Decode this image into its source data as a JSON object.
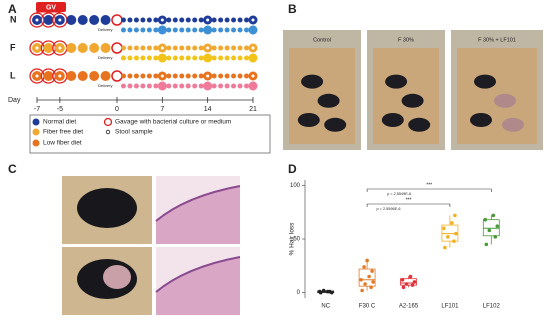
{
  "panel_labels": [
    "A",
    "B",
    "C",
    "D"
  ],
  "panel_a": {
    "gavage_label": "GV",
    "rows": [
      {
        "label": "N",
        "color": "#1f3c99",
        "after_color": "#3d8fd6"
      },
      {
        "label": "F",
        "color": "#f0a830",
        "after_color": "#f2c318"
      },
      {
        "label": "L",
        "color": "#e8731e",
        "after_color": "#f07a9a"
      }
    ],
    "delivery_label": "Delivery",
    "axis_label": "Day",
    "day_ticks": [
      -7,
      -5,
      0,
      7,
      14,
      21
    ],
    "legend": [
      {
        "label": "Normal diet",
        "color": "#1f3c99"
      },
      {
        "label": "Fiber free diet",
        "color": "#f0a830"
      },
      {
        "label": "Low fiber diet",
        "color": "#e8731e"
      },
      {
        "label": "Gavage with bacterial culture or medium",
        "color": "#e02020"
      },
      {
        "label": "Stool sample",
        "color": "#222222"
      }
    ]
  },
  "panel_b": {
    "photo_labels": [
      "Control",
      "F 30%",
      "F 30% + LF101"
    ]
  },
  "chart_data": {
    "type": "box",
    "y_label": "% Hair loss",
    "categories": [
      "NC",
      "F30 C",
      "A2-165",
      "LF101",
      "LF102"
    ],
    "boxes": [
      {
        "color": "#222222",
        "min": 0,
        "q1": 0,
        "median": 1,
        "q3": 1.5,
        "max": 2,
        "points": [
          0,
          1,
          2,
          0,
          1,
          1
        ]
      },
      {
        "color": "#e07b2a",
        "min": 2,
        "q1": 6,
        "median": 12,
        "q3": 22,
        "max": 30,
        "points": [
          2,
          5,
          8,
          10,
          12,
          15,
          20,
          24,
          30
        ]
      },
      {
        "color": "#e0303a",
        "min": 5,
        "q1": 7,
        "median": 9,
        "q3": 13,
        "max": 15,
        "points": [
          5,
          7,
          8,
          10,
          12,
          15
        ]
      },
      {
        "color": "#f0b020",
        "min": 42,
        "q1": 48,
        "median": 55,
        "q3": 63,
        "max": 72,
        "points": [
          42,
          48,
          52,
          55,
          60,
          65,
          72
        ]
      },
      {
        "color": "#4a9a3a",
        "min": 45,
        "q1": 53,
        "median": 60,
        "q3": 68,
        "max": 72,
        "points": [
          45,
          52,
          58,
          62,
          68,
          72
        ]
      }
    ],
    "ylim": [
      -5,
      105
    ],
    "yticks": [
      0,
      50,
      100
    ],
    "annotations": [
      "***",
      "p = 2.5549E-6",
      "***",
      "p = 2.5596E-6"
    ]
  }
}
